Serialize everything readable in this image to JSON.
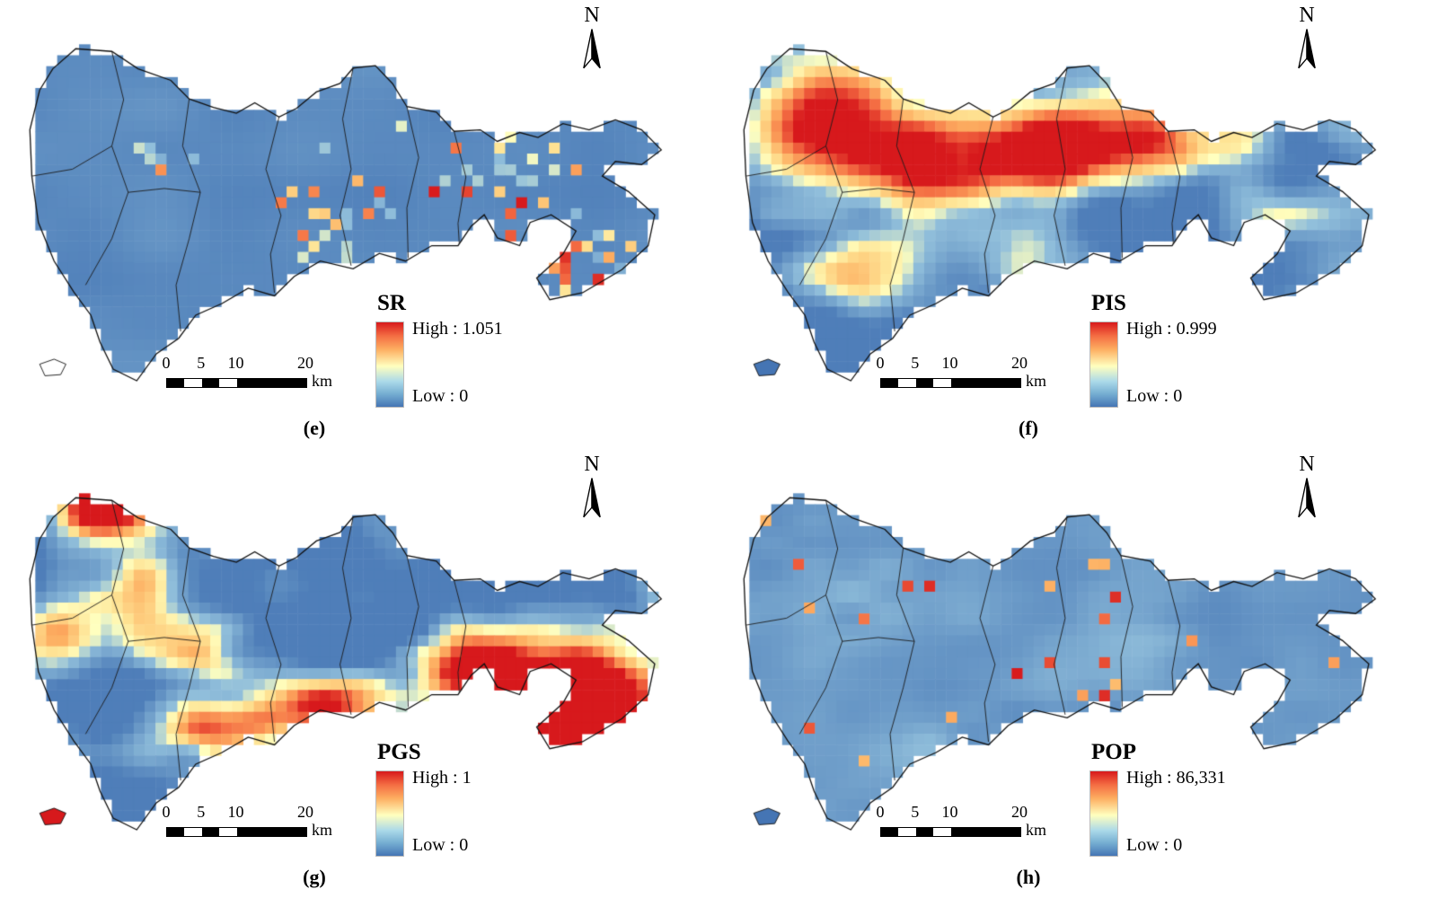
{
  "figure": {
    "north_label": "N",
    "legend_high_label": "High",
    "legend_low_label": "Low",
    "legend_separator": " : ",
    "scalebar": {
      "ticks": [
        "0",
        "5",
        "10",
        "20"
      ],
      "unit": "km"
    },
    "colors": {
      "high": "#d7191c",
      "mid": "#ffffbf",
      "low": "#4575b4",
      "outline": "#111111"
    },
    "panels": [
      {
        "id": "e",
        "caption": "(e)",
        "variable": "SR",
        "high_value": "1.051",
        "low_value": "0"
      },
      {
        "id": "f",
        "caption": "(f)",
        "variable": "PIS",
        "high_value": "0.999",
        "low_value": "0"
      },
      {
        "id": "g",
        "caption": "(g)",
        "variable": "PGS",
        "high_value": "1",
        "low_value": "0"
      },
      {
        "id": "h",
        "caption": "(h)",
        "variable": "POP",
        "high_value": "86,331",
        "low_value": "0"
      }
    ]
  },
  "map_data": {
    "type": "choropleth-raster",
    "layout": "2x2 grid of four maps of the same city extent, pixel cells colored blue (low) to red (high)",
    "panels": [
      {
        "variable": "SR",
        "range": [
          0,
          1.051
        ],
        "pattern": "almost entirely low (blue) with sparse high cells in the central-south and east"
      },
      {
        "variable": "PIS",
        "range": [
          0,
          0.999
        ],
        "pattern": "high (red) across the western and central urban areas; low in the far east"
      },
      {
        "variable": "PGS",
        "range": [
          0,
          1
        ],
        "pattern": "high along the south-central belt and eastern peninsula, high patch at the north tip; low in the northwest interior"
      },
      {
        "variable": "POP",
        "range": [
          0,
          86331
        ],
        "pattern": "mostly low with scattered high cells in the northwest and south-central areas"
      }
    ]
  }
}
